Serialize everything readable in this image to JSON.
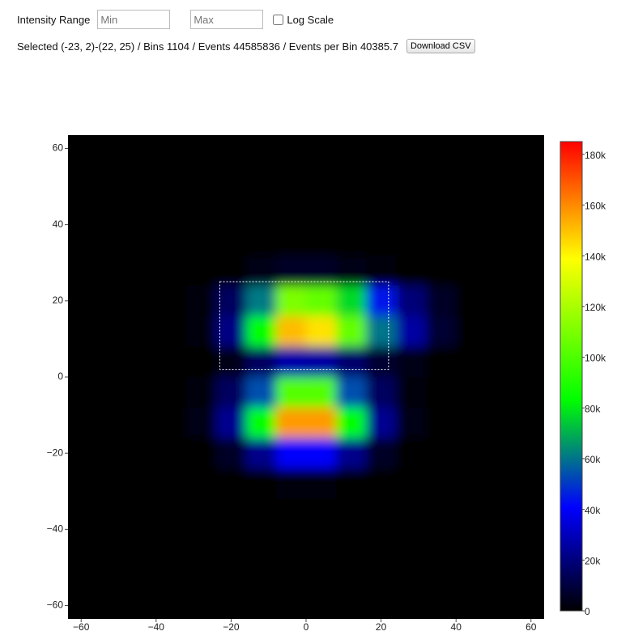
{
  "controls": {
    "intensity_label": "Intensity Range",
    "min_placeholder": "Min",
    "max_placeholder": "Max",
    "log_scale_label": "Log Scale",
    "log_scale": false
  },
  "status": "Selected (-23, 2)-(22, 25) / Bins 1104 / Events 44585836 / Events per Bin 40385.7",
  "download_button": "Download CSV",
  "chart_data": {
    "type": "heatmap",
    "x": [
      -60,
      -52,
      -44,
      -36,
      -28,
      -20,
      -12,
      -4,
      4,
      12,
      20,
      28,
      36,
      44,
      52,
      60
    ],
    "y": [
      60,
      52,
      44,
      36,
      28,
      20,
      12,
      4,
      -4,
      -12,
      -20,
      -28,
      -36,
      -44,
      -52,
      -60
    ],
    "z": [
      [
        0,
        0,
        0,
        0,
        0,
        0,
        0,
        0,
        0,
        0,
        0,
        0,
        0,
        0,
        0,
        0
      ],
      [
        0,
        0,
        0,
        0,
        0,
        0,
        0,
        0,
        0,
        0,
        0,
        0,
        0,
        0,
        0,
        0
      ],
      [
        0,
        0,
        0,
        0,
        0,
        0,
        0,
        0,
        0,
        0,
        0,
        0,
        0,
        0,
        0,
        0
      ],
      [
        0,
        0,
        0,
        0,
        0,
        0,
        0,
        0,
        0,
        0,
        0,
        0,
        0,
        0,
        0,
        0
      ],
      [
        0,
        0,
        0,
        0,
        0,
        1000,
        3000,
        6000,
        6000,
        4000,
        2000,
        1000,
        0,
        0,
        0,
        0
      ],
      [
        0,
        0,
        0,
        0,
        2000,
        15000,
        61000,
        110000,
        105000,
        77000,
        44000,
        19000,
        6000,
        0,
        0,
        0
      ],
      [
        0,
        0,
        0,
        0,
        2000,
        21000,
        84000,
        151000,
        144000,
        105000,
        60000,
        26000,
        8000,
        1000,
        0,
        0
      ],
      [
        0,
        0,
        0,
        0,
        0,
        4000,
        15000,
        27000,
        26000,
        17000,
        8000,
        3000,
        1000,
        0,
        0,
        0
      ],
      [
        0,
        0,
        0,
        0,
        2000,
        15000,
        54000,
        101000,
        101000,
        54000,
        15000,
        2000,
        0,
        0,
        0,
        0
      ],
      [
        0,
        0,
        0,
        0,
        3000,
        23000,
        84000,
        157000,
        157000,
        84000,
        23000,
        3000,
        0,
        0,
        0,
        0
      ],
      [
        0,
        0,
        0,
        0,
        1000,
        6000,
        22000,
        41000,
        41000,
        22000,
        6000,
        1000,
        0,
        0,
        0,
        0
      ],
      [
        0,
        0,
        0,
        0,
        0,
        0,
        1000,
        2000,
        2000,
        1000,
        0,
        0,
        0,
        0,
        0,
        0
      ],
      [
        0,
        0,
        0,
        0,
        0,
        0,
        0,
        0,
        0,
        0,
        0,
        0,
        0,
        0,
        0,
        0
      ],
      [
        0,
        0,
        0,
        0,
        0,
        0,
        0,
        0,
        0,
        0,
        0,
        0,
        0,
        0,
        0,
        0
      ],
      [
        0,
        0,
        0,
        0,
        0,
        0,
        0,
        0,
        0,
        0,
        0,
        0,
        0,
        0,
        0,
        0
      ],
      [
        0,
        0,
        0,
        0,
        0,
        0,
        0,
        0,
        0,
        0,
        0,
        0,
        0,
        0,
        0,
        0
      ]
    ],
    "xlim": [
      -63.5,
      63.5
    ],
    "ylim": [
      -63.5,
      63.5
    ],
    "xticks": [
      {
        "value": -60,
        "label": "−60"
      },
      {
        "value": -40,
        "label": "−40"
      },
      {
        "value": -20,
        "label": "−20"
      },
      0,
      20,
      40,
      60
    ],
    "yticks": [
      {
        "value": -60,
        "label": "−60"
      },
      {
        "value": -40,
        "label": "−40"
      },
      {
        "value": -20,
        "label": "−20"
      },
      0,
      20,
      40,
      60
    ],
    "zlim": [
      0,
      185000
    ],
    "zticks": [
      0,
      {
        "value": 20000,
        "label": "20k"
      },
      {
        "value": 40000,
        "label": "40k"
      },
      {
        "value": 60000,
        "label": "60k"
      },
      {
        "value": 80000,
        "label": "80k"
      },
      {
        "value": 100000,
        "label": "100k"
      },
      {
        "value": 120000,
        "label": "120k"
      },
      {
        "value": 140000,
        "label": "140k"
      },
      {
        "value": 160000,
        "label": "160k"
      },
      {
        "value": 180000,
        "label": "180k"
      }
    ],
    "colorscale": [
      [
        0,
        "#000000"
      ],
      [
        0.22,
        "#0000ff"
      ],
      [
        0.45,
        "#00ff00"
      ],
      [
        0.75,
        "#ffff00"
      ],
      [
        1,
        "#ff0000"
      ]
    ],
    "selection": {
      "x0": -23,
      "y0": 2,
      "x1": 22,
      "y1": 25
    }
  }
}
